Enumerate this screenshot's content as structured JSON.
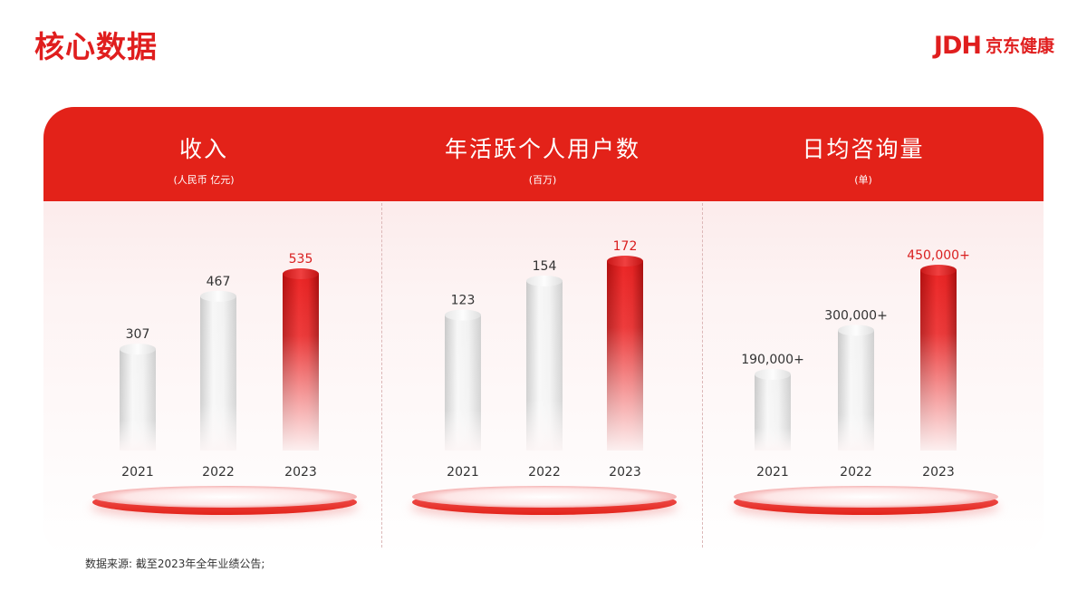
{
  "header": {
    "title": "核心数据",
    "logo_mark": "JDH",
    "logo_text": "京东健康"
  },
  "colors": {
    "brand_red": "#e32219",
    "highlight_label": "#d91f1f",
    "label_text": "#333333"
  },
  "chart_data": [
    {
      "type": "bar",
      "title": "收入",
      "subtitle": "(人民币 亿元)",
      "categories": [
        "2021",
        "2022",
        "2023"
      ],
      "values": [
        307,
        467,
        535
      ],
      "value_labels": [
        "307",
        "467",
        "535"
      ],
      "highlight_index": 2,
      "ylim": [
        0,
        535
      ]
    },
    {
      "type": "bar",
      "title": "年活跃个人用户数",
      "subtitle": "(百万)",
      "categories": [
        "2021",
        "2022",
        "2023"
      ],
      "values": [
        123,
        154,
        172
      ],
      "value_labels": [
        "123",
        "154",
        "172"
      ],
      "highlight_index": 2,
      "ylim": [
        0,
        172
      ]
    },
    {
      "type": "bar",
      "title": "日均咨询量",
      "subtitle": "(单)",
      "categories": [
        "2021",
        "2022",
        "2023"
      ],
      "values": [
        190000,
        300000,
        450000
      ],
      "value_labels": [
        "190,000+",
        "300,000+",
        "450,000+"
      ],
      "highlight_index": 2,
      "ylim": [
        0,
        450000
      ]
    }
  ],
  "footnote": "数据来源: 截至2023年全年业绩公告;"
}
